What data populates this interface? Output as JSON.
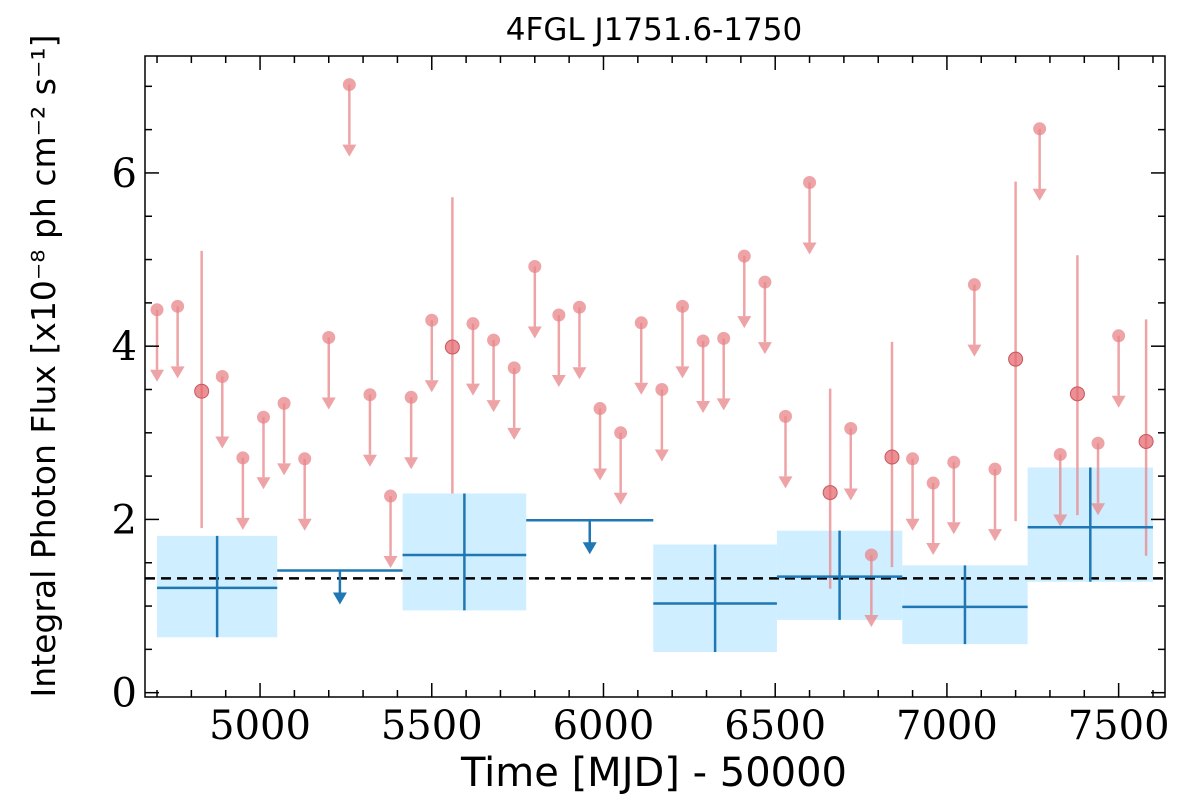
{
  "chart_data": {
    "type": "scatter",
    "title": "4FGL J1751.6-1750",
    "xlabel": "Time [MJD] - 50000",
    "ylabel": "Integral Photon Flux [x10⁻⁸ ph cm⁻² s⁻¹]",
    "xlim": [
      4665,
      7635
    ],
    "ylim": [
      -0.05,
      7.35
    ],
    "xticks": [
      5000,
      5500,
      6000,
      6500,
      7000,
      7500
    ],
    "yticks": [
      0,
      2,
      4,
      6
    ],
    "average_flux": 1.32,
    "colors": {
      "fine_bin": "#e8868a",
      "coarse_bin": "#1f77b4",
      "band_fill": "#cfeeff",
      "average_line": "#000000"
    },
    "fine_upper_limits": [
      {
        "x": 4700,
        "y": 4.42
      },
      {
        "x": 4760,
        "y": 4.46
      },
      {
        "x": 4890,
        "y": 3.65
      },
      {
        "x": 4950,
        "y": 2.71
      },
      {
        "x": 5010,
        "y": 3.18
      },
      {
        "x": 5070,
        "y": 3.34
      },
      {
        "x": 5130,
        "y": 2.7
      },
      {
        "x": 5200,
        "y": 4.1
      },
      {
        "x": 5260,
        "y": 7.02
      },
      {
        "x": 5320,
        "y": 3.44
      },
      {
        "x": 5380,
        "y": 2.27
      },
      {
        "x": 5440,
        "y": 3.41
      },
      {
        "x": 5500,
        "y": 4.3
      },
      {
        "x": 5620,
        "y": 4.26
      },
      {
        "x": 5680,
        "y": 4.07
      },
      {
        "x": 5740,
        "y": 3.75
      },
      {
        "x": 5800,
        "y": 4.92
      },
      {
        "x": 5870,
        "y": 4.36
      },
      {
        "x": 5930,
        "y": 4.45
      },
      {
        "x": 5990,
        "y": 3.28
      },
      {
        "x": 6050,
        "y": 3.0
      },
      {
        "x": 6110,
        "y": 4.27
      },
      {
        "x": 6170,
        "y": 3.5
      },
      {
        "x": 6230,
        "y": 4.46
      },
      {
        "x": 6290,
        "y": 4.06
      },
      {
        "x": 6350,
        "y": 4.09
      },
      {
        "x": 6410,
        "y": 5.04
      },
      {
        "x": 6470,
        "y": 4.74
      },
      {
        "x": 6530,
        "y": 3.19
      },
      {
        "x": 6600,
        "y": 5.89
      },
      {
        "x": 6720,
        "y": 3.05
      },
      {
        "x": 6780,
        "y": 1.59
      },
      {
        "x": 6900,
        "y": 2.7
      },
      {
        "x": 6960,
        "y": 2.42
      },
      {
        "x": 7020,
        "y": 2.66
      },
      {
        "x": 7080,
        "y": 4.71
      },
      {
        "x": 7140,
        "y": 2.58
      },
      {
        "x": 7270,
        "y": 6.51
      },
      {
        "x": 7330,
        "y": 2.75
      },
      {
        "x": 7440,
        "y": 2.88
      },
      {
        "x": 7500,
        "y": 4.12
      }
    ],
    "fine_detections": [
      {
        "x": 4830,
        "y": 3.48,
        "ylow": 1.9,
        "yhigh": 5.1
      },
      {
        "x": 5560,
        "y": 3.99,
        "ylow": 2.3,
        "yhigh": 5.72
      },
      {
        "x": 6660,
        "y": 2.31,
        "ylow": 1.2,
        "yhigh": 3.51
      },
      {
        "x": 6840,
        "y": 2.72,
        "ylow": 1.45,
        "yhigh": 4.05
      },
      {
        "x": 7200,
        "y": 3.85,
        "ylow": 1.98,
        "yhigh": 5.9
      },
      {
        "x": 7380,
        "y": 3.45,
        "ylow": 2.05,
        "yhigh": 5.05
      },
      {
        "x": 7580,
        "y": 2.9,
        "ylow": 1.58,
        "yhigh": 4.31
      }
    ],
    "coarse_detections": [
      {
        "x0": 4700,
        "x1": 5050,
        "y": 1.21,
        "ylow": 0.64,
        "yhigh": 1.81
      },
      {
        "x0": 5415,
        "x1": 5775,
        "y": 1.59,
        "ylow": 0.95,
        "yhigh": 2.3
      },
      {
        "x0": 6145,
        "x1": 6505,
        "y": 1.03,
        "ylow": 0.47,
        "yhigh": 1.71
      },
      {
        "x0": 6505,
        "x1": 6870,
        "y": 1.34,
        "ylow": 0.84,
        "yhigh": 1.87
      },
      {
        "x0": 6870,
        "x1": 7235,
        "y": 0.99,
        "ylow": 0.56,
        "yhigh": 1.47
      },
      {
        "x0": 7235,
        "x1": 7600,
        "y": 1.91,
        "ylow": 1.28,
        "yhigh": 2.6
      }
    ],
    "coarse_upper_limits": [
      {
        "x0": 5050,
        "x1": 5415,
        "y": 1.41
      },
      {
        "x0": 5775,
        "x1": 6145,
        "y": 1.99
      }
    ]
  }
}
